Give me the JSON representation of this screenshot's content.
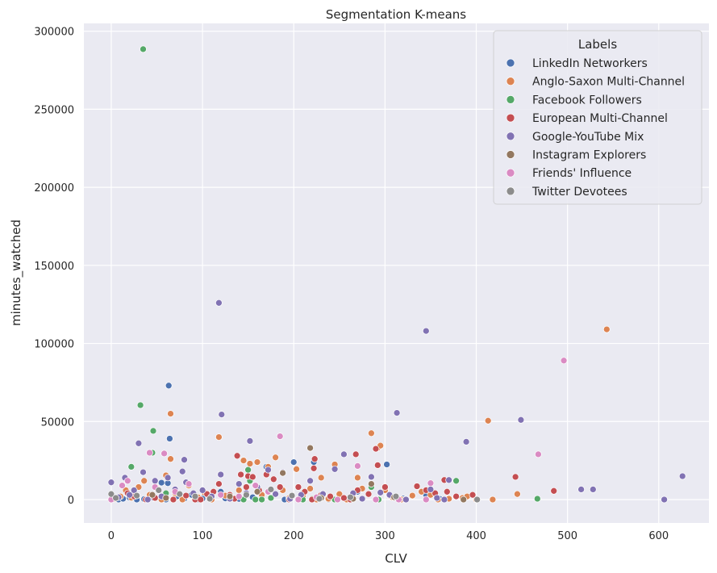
{
  "chart_data": {
    "type": "scatter",
    "title": "Segmentation K-means",
    "xlabel": "CLV",
    "ylabel": "minutes_watched",
    "xlim": [
      -30,
      655
    ],
    "ylim": [
      -15000,
      305000
    ],
    "x_ticks": [
      0,
      100,
      200,
      300,
      400,
      500,
      600
    ],
    "y_ticks": [
      0,
      50000,
      100000,
      150000,
      200000,
      250000,
      300000
    ],
    "grid": true,
    "legend": {
      "title": "Labels",
      "placement": "top-right"
    },
    "series": [
      {
        "name": "LinkedIn Networkers",
        "color": "#4c72b0",
        "points": [
          [
            8,
            0
          ],
          [
            13,
            500
          ],
          [
            20,
            1200
          ],
          [
            28,
            0
          ],
          [
            36,
            300
          ],
          [
            40,
            0
          ],
          [
            47,
            800
          ],
          [
            55,
            10800
          ],
          [
            58,
            1500
          ],
          [
            60,
            0
          ],
          [
            62,
            10500
          ],
          [
            63,
            73000
          ],
          [
            64,
            39000
          ],
          [
            72,
            2000
          ],
          [
            80,
            500
          ],
          [
            88,
            3000
          ],
          [
            95,
            0
          ],
          [
            100,
            600
          ],
          [
            110,
            1000
          ],
          [
            120,
            5000
          ],
          [
            125,
            700
          ],
          [
            140,
            400
          ],
          [
            155,
            1500
          ],
          [
            170,
            21000
          ],
          [
            190,
            0
          ],
          [
            200,
            24000
          ],
          [
            210,
            800
          ],
          [
            222,
            24000
          ],
          [
            238,
            0
          ],
          [
            260,
            400
          ],
          [
            270,
            5000
          ],
          [
            290,
            300
          ],
          [
            302,
            22500
          ],
          [
            320,
            600
          ],
          [
            345,
            3000
          ],
          [
            360,
            400
          ]
        ]
      },
      {
        "name": "Anglo-Saxon Multi-Channel",
        "color": "#dd8452",
        "points": [
          [
            3,
            500
          ],
          [
            10,
            2000
          ],
          [
            16,
            6000
          ],
          [
            22,
            1200
          ],
          [
            30,
            8000
          ],
          [
            36,
            12000
          ],
          [
            42,
            3000
          ],
          [
            50,
            7000
          ],
          [
            55,
            0
          ],
          [
            60,
            15500
          ],
          [
            65,
            26000
          ],
          [
            65,
            55000
          ],
          [
            70,
            4000
          ],
          [
            78,
            0
          ],
          [
            85,
            9000
          ],
          [
            95,
            1500
          ],
          [
            102,
            4500
          ],
          [
            110,
            0
          ],
          [
            118,
            40000
          ],
          [
            125,
            2500
          ],
          [
            132,
            800
          ],
          [
            140,
            6000
          ],
          [
            145,
            25000
          ],
          [
            152,
            23000
          ],
          [
            160,
            24000
          ],
          [
            165,
            3000
          ],
          [
            172,
            21000
          ],
          [
            180,
            27000
          ],
          [
            188,
            6000
          ],
          [
            195,
            1000
          ],
          [
            203,
            19500
          ],
          [
            210,
            2000
          ],
          [
            218,
            7000
          ],
          [
            225,
            0
          ],
          [
            230,
            14000
          ],
          [
            238,
            500
          ],
          [
            245,
            22500
          ],
          [
            250,
            3500
          ],
          [
            258,
            0
          ],
          [
            265,
            3500
          ],
          [
            270,
            14000
          ],
          [
            275,
            7000
          ],
          [
            285,
            42500
          ],
          [
            292,
            33000
          ],
          [
            295,
            34500
          ],
          [
            300,
            6000
          ],
          [
            308,
            1500
          ],
          [
            318,
            0
          ],
          [
            330,
            2500
          ],
          [
            340,
            5000
          ],
          [
            350,
            3000
          ],
          [
            358,
            0
          ],
          [
            370,
            500
          ],
          [
            385,
            1000
          ],
          [
            390,
            2000
          ],
          [
            400,
            0
          ],
          [
            413,
            50500
          ],
          [
            418,
            0
          ],
          [
            445,
            3500
          ],
          [
            543,
            109000
          ]
        ]
      },
      {
        "name": "Facebook Followers",
        "color": "#55a868",
        "points": [
          [
            22,
            21000
          ],
          [
            32,
            60500
          ],
          [
            35,
            288500
          ],
          [
            45,
            30000
          ],
          [
            46,
            44000
          ],
          [
            60,
            4000
          ],
          [
            145,
            0
          ],
          [
            150,
            19000
          ],
          [
            152,
            12000
          ],
          [
            158,
            0
          ],
          [
            165,
            0
          ],
          [
            175,
            1000
          ],
          [
            210,
            0
          ],
          [
            220,
            500
          ],
          [
            245,
            0
          ],
          [
            285,
            8000
          ],
          [
            293,
            0
          ],
          [
            378,
            12000
          ],
          [
            467,
            500
          ]
        ]
      },
      {
        "name": "European Multi-Channel",
        "color": "#c44e52",
        "points": [
          [
            18,
            4000
          ],
          [
            25,
            2000
          ],
          [
            38,
            0
          ],
          [
            48,
            1000
          ],
          [
            68,
            0
          ],
          [
            82,
            2500
          ],
          [
            92,
            0
          ],
          [
            98,
            0
          ],
          [
            105,
            3500
          ],
          [
            112,
            5000
          ],
          [
            118,
            10000
          ],
          [
            130,
            3000
          ],
          [
            135,
            500
          ],
          [
            138,
            28000
          ],
          [
            142,
            16000
          ],
          [
            148,
            8000
          ],
          [
            150,
            15000
          ],
          [
            155,
            14500
          ],
          [
            162,
            6000
          ],
          [
            170,
            16000
          ],
          [
            178,
            13000
          ],
          [
            185,
            8000
          ],
          [
            195,
            0
          ],
          [
            205,
            8000
          ],
          [
            212,
            5000
          ],
          [
            220,
            0
          ],
          [
            222,
            20000
          ],
          [
            223,
            26000
          ],
          [
            230,
            3000
          ],
          [
            240,
            2000
          ],
          [
            255,
            1000
          ],
          [
            262,
            0
          ],
          [
            268,
            29000
          ],
          [
            270,
            6000
          ],
          [
            282,
            3500
          ],
          [
            290,
            32500
          ],
          [
            292,
            22000
          ],
          [
            300,
            8000
          ],
          [
            305,
            2500
          ],
          [
            322,
            0
          ],
          [
            335,
            8500
          ],
          [
            345,
            6000
          ],
          [
            355,
            4000
          ],
          [
            365,
            12500
          ],
          [
            368,
            5000
          ],
          [
            378,
            2000
          ],
          [
            396,
            3000
          ],
          [
            443,
            14500
          ],
          [
            485,
            5500
          ]
        ]
      },
      {
        "name": "Google-YouTube Mix",
        "color": "#8172b3",
        "points": [
          [
            0,
            11000
          ],
          [
            8,
            1500
          ],
          [
            15,
            14000
          ],
          [
            20,
            3000
          ],
          [
            25,
            6000
          ],
          [
            30,
            36000
          ],
          [
            35,
            17500
          ],
          [
            40,
            0
          ],
          [
            48,
            12000
          ],
          [
            55,
            2000
          ],
          [
            62,
            14000
          ],
          [
            70,
            6500
          ],
          [
            78,
            18000
          ],
          [
            80,
            25500
          ],
          [
            82,
            11000
          ],
          [
            90,
            4000
          ],
          [
            100,
            6000
          ],
          [
            110,
            2000
          ],
          [
            118,
            126000
          ],
          [
            120,
            16000
          ],
          [
            121,
            54500
          ],
          [
            130,
            500
          ],
          [
            140,
            10000
          ],
          [
            148,
            4000
          ],
          [
            152,
            37500
          ],
          [
            160,
            8000
          ],
          [
            172,
            19000
          ],
          [
            180,
            3500
          ],
          [
            188,
            17500
          ],
          [
            196,
            500
          ],
          [
            208,
            3000
          ],
          [
            218,
            12000
          ],
          [
            232,
            3500
          ],
          [
            245,
            19500
          ],
          [
            255,
            29000
          ],
          [
            265,
            4000
          ],
          [
            275,
            500
          ],
          [
            285,
            14500
          ],
          [
            295,
            4500
          ],
          [
            305,
            3000
          ],
          [
            313,
            55500
          ],
          [
            323,
            0
          ],
          [
            345,
            108000
          ],
          [
            350,
            6500
          ],
          [
            357,
            1000
          ],
          [
            365,
            0
          ],
          [
            370,
            12500
          ],
          [
            389,
            37000
          ],
          [
            449,
            51000
          ],
          [
            515,
            6500
          ],
          [
            528,
            6500
          ],
          [
            606,
            0
          ],
          [
            626,
            15000
          ]
        ]
      },
      {
        "name": "Instagram Explorers",
        "color": "#937860",
        "points": [
          [
            45,
            3000
          ],
          [
            60,
            1000
          ],
          [
            130,
            2000
          ],
          [
            160,
            5000
          ],
          [
            188,
            17000
          ],
          [
            218,
            33000
          ],
          [
            230,
            1000
          ],
          [
            265,
            500
          ],
          [
            285,
            10000
          ],
          [
            310,
            1500
          ],
          [
            386,
            0
          ]
        ]
      },
      {
        "name": "Friends' Influence",
        "color": "#da8bc3",
        "points": [
          [
            0,
            0
          ],
          [
            12,
            9000
          ],
          [
            18,
            12000
          ],
          [
            42,
            30000
          ],
          [
            48,
            8000
          ],
          [
            58,
            29500
          ],
          [
            70,
            5000
          ],
          [
            85,
            10000
          ],
          [
            120,
            3000
          ],
          [
            140,
            2000
          ],
          [
            158,
            9000
          ],
          [
            172,
            5000
          ],
          [
            185,
            40500
          ],
          [
            205,
            0
          ],
          [
            225,
            1500
          ],
          [
            248,
            0
          ],
          [
            270,
            21500
          ],
          [
            290,
            0
          ],
          [
            315,
            0
          ],
          [
            345,
            0
          ],
          [
            350,
            10500
          ],
          [
            468,
            29000
          ],
          [
            496,
            89000
          ]
        ]
      },
      {
        "name": "Twitter Devotees",
        "color": "#8c8c8c",
        "points": [
          [
            0,
            3500
          ],
          [
            5,
            1000
          ],
          [
            28,
            2500
          ],
          [
            52,
            6000
          ],
          [
            75,
            3500
          ],
          [
            92,
            2000
          ],
          [
            108,
            500
          ],
          [
            148,
            3000
          ],
          [
            175,
            6500
          ],
          [
            198,
            2500
          ],
          [
            228,
            500
          ],
          [
            262,
            1500
          ],
          [
            312,
            2000
          ],
          [
            401,
            0
          ]
        ]
      }
    ]
  }
}
